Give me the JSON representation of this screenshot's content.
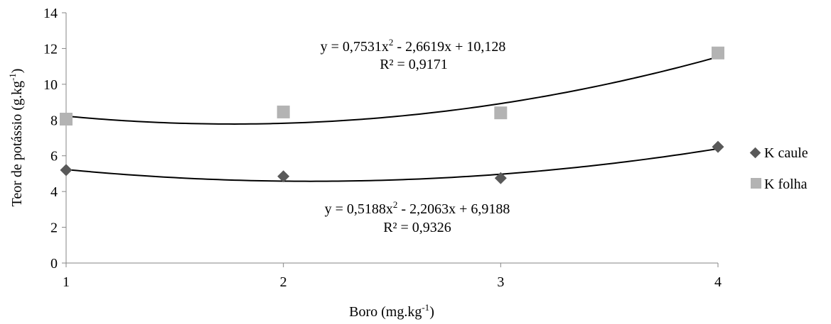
{
  "chart_data": {
    "type": "scatter",
    "title": "",
    "xlabel": {
      "main": "Boro (mg.kg",
      "sup": "-1",
      "end": ")"
    },
    "ylabel": {
      "main": "Teor de potássio (g.kg",
      "sup": "-1",
      "end": ")"
    },
    "xlim": [
      1,
      4
    ],
    "ylim": [
      0,
      14
    ],
    "x_ticks": [
      "1",
      "2",
      "3",
      "4"
    ],
    "y_ticks": [
      "0",
      "2",
      "4",
      "6",
      "8",
      "10",
      "12",
      "14"
    ],
    "grid": false,
    "legend_position": "right",
    "series": [
      {
        "name": "K caule",
        "marker": "diamond",
        "color": "#595959",
        "x": [
          1,
          2,
          3,
          4
        ],
        "y": [
          5.2,
          4.85,
          4.75,
          6.5
        ],
        "trendline": {
          "type": "polynomial",
          "coefficients": [
            0.5188,
            -2.2063,
            6.9188
          ],
          "equation": {
            "a": "y = 0,5188x",
            "sup": "2",
            "b": " - 2,2063x + 6,9188"
          },
          "r2": "R² = 0,9326"
        }
      },
      {
        "name": "K folha",
        "marker": "square",
        "color": "#b3b3b3",
        "x": [
          1,
          2,
          3,
          4
        ],
        "y": [
          8.05,
          8.45,
          8.4,
          11.75
        ],
        "trendline": {
          "type": "polynomial",
          "coefficients": [
            0.7531,
            -2.6619,
            10.128
          ],
          "equation": {
            "a": "y = 0,7531x",
            "sup": "2",
            "b": " - 2,6619x + 10,128"
          },
          "r2": "R² = 0,9171"
        }
      }
    ]
  }
}
